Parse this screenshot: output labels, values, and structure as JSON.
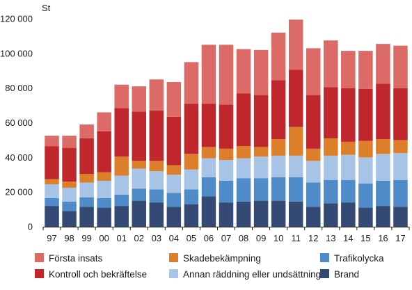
{
  "chart_data": {
    "type": "bar",
    "stacked": true,
    "title": "",
    "xlabel": "",
    "ylabel": "St",
    "ylim": [
      0,
      120000
    ],
    "yticks": [
      0,
      20000,
      40000,
      60000,
      80000,
      100000,
      120000
    ],
    "ytick_labels": [
      "0",
      "20 000",
      "40 000",
      "60 000",
      "80 000",
      "100 000",
      "120 000"
    ],
    "grid": false,
    "legend_position": "bottom",
    "categories": [
      "97",
      "98",
      "99",
      "00",
      "01",
      "02",
      "03",
      "04",
      "05",
      "06",
      "07",
      "08",
      "09",
      "10",
      "11",
      "12",
      "13",
      "14",
      "15",
      "16",
      "17"
    ],
    "series": [
      {
        "name": "Brand",
        "color": "#344a74",
        "values": [
          12000,
          9000,
          11500,
          11000,
          12000,
          15000,
          14000,
          11500,
          13000,
          17500,
          14000,
          14500,
          15000,
          15000,
          14500,
          11500,
          13500,
          14000,
          11000,
          12000,
          11500
        ]
      },
      {
        "name": "Trafikolycka",
        "color": "#4f8ac9",
        "values": [
          4500,
          5500,
          5500,
          5500,
          6500,
          7000,
          7500,
          8000,
          8500,
          11000,
          12500,
          13500,
          13000,
          13500,
          14000,
          14000,
          13500,
          13000,
          14000,
          14500,
          15500
        ]
      },
      {
        "name": "Annan räddning eller undsättning",
        "color": "#a7c3e6",
        "values": [
          8000,
          8000,
          8500,
          10000,
          11000,
          11500,
          10500,
          10500,
          11500,
          11000,
          12000,
          11500,
          12500,
          12500,
          12500,
          12500,
          14000,
          14500,
          15000,
          15500,
          15500
        ]
      },
      {
        "name": "Skadebekämpning",
        "color": "#dd7f2a",
        "values": [
          3000,
          3500,
          5000,
          5000,
          11000,
          4500,
          6000,
          5500,
          9000,
          6500,
          6500,
          7000,
          5500,
          9500,
          16500,
          7000,
          10000,
          7500,
          9500,
          8500,
          7500
        ]
      },
      {
        "name": "Kontroll och bekräftelse",
        "color": "#c0272d",
        "values": [
          19000,
          19500,
          20500,
          23500,
          28000,
          28500,
          29000,
          28000,
          29000,
          25000,
          25500,
          30500,
          30000,
          34000,
          33000,
          31000,
          29500,
          31000,
          30000,
          32000,
          30000
        ]
      },
      {
        "name": "Första insats",
        "color": "#dc6a66",
        "values": [
          6000,
          7000,
          8000,
          11000,
          13500,
          14500,
          18000,
          20000,
          24000,
          34000,
          34500,
          25500,
          26000,
          27500,
          29000,
          27000,
          27000,
          21500,
          22000,
          23000,
          24500
        ]
      }
    ]
  },
  "legend": {
    "rows": [
      [
        "Första insats",
        "Skadebekämpning",
        "Trafikolycka"
      ],
      [
        "Kontroll och bekräftelse",
        "Annan räddning eller undsättning",
        "Brand"
      ]
    ]
  }
}
